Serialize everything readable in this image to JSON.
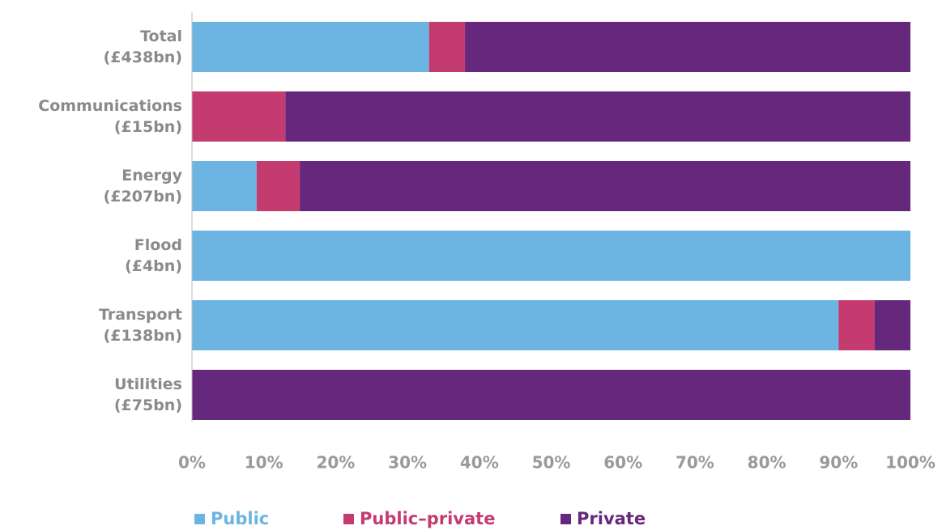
{
  "chart_data": {
    "type": "stacked-barh",
    "categories": [
      "Total\n(£438bn)",
      "Communications\n(£15bn)",
      "Energy\n(£207bn)",
      "Flood\n(£4bn)",
      "Transport\n(£138bn)",
      "Utilities\n(£75bn)"
    ],
    "series": [
      {
        "name": "Public",
        "color": "#6cb5e3",
        "values": [
          33,
          0,
          9,
          100,
          90,
          0
        ]
      },
      {
        "name": "Public–private",
        "color": "#c43b70",
        "values": [
          5,
          13,
          6,
          0,
          5,
          0
        ]
      },
      {
        "name": "Private",
        "color": "#66287c",
        "values": [
          62,
          87,
          85,
          0,
          5,
          100
        ]
      }
    ],
    "xlim": [
      0,
      100
    ],
    "xticks": [
      {
        "value": 0,
        "label": "0%"
      },
      {
        "value": 10,
        "label": "10%"
      },
      {
        "value": 20,
        "label": "20%"
      },
      {
        "value": 30,
        "label": "30%"
      },
      {
        "value": 40,
        "label": "40%"
      },
      {
        "value": 50,
        "label": "50%"
      },
      {
        "value": 60,
        "label": "60%"
      },
      {
        "value": 70,
        "label": "70%"
      },
      {
        "value": 80,
        "label": "80%"
      },
      {
        "value": 90,
        "label": "90%"
      },
      {
        "value": 100,
        "label": "100%"
      }
    ],
    "legend": "bottom-left"
  }
}
